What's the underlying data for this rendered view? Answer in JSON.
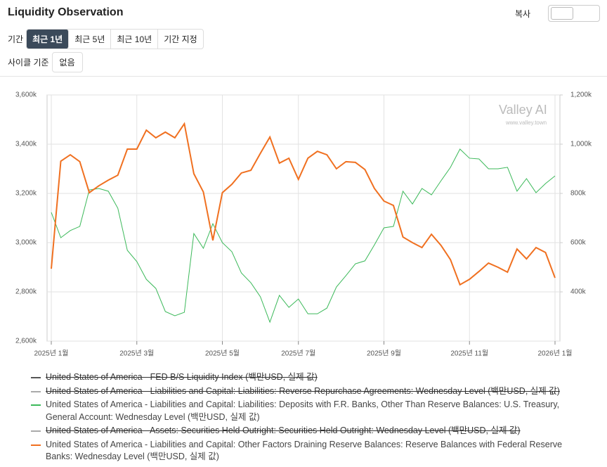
{
  "header": {
    "title": "Liquidity Observation",
    "copy": "복사"
  },
  "controls": {
    "period_label": "기간",
    "periods": [
      "최근 1년",
      "최근 5년",
      "최근 10년",
      "기간 지정"
    ],
    "cycle_label": "사이클 기준",
    "cycle_value": "없음"
  },
  "watermark": {
    "brand": "Valley AI",
    "url": "www.valley.town"
  },
  "chart_data": {
    "type": "line",
    "categories": [
      "2025년 1월",
      null,
      null,
      null,
      null,
      null,
      null,
      null,
      null,
      "2025년 3월",
      null,
      null,
      null,
      null,
      null,
      null,
      null,
      null,
      "2025년 5월",
      null,
      null,
      null,
      null,
      null,
      null,
      null,
      "2025년 7월",
      null,
      null,
      null,
      null,
      null,
      null,
      null,
      null,
      "2025년 9월",
      null,
      null,
      null,
      null,
      null,
      null,
      null,
      null,
      "2025년 11월",
      null,
      null,
      null,
      null,
      null,
      null,
      null,
      null,
      "2026년 1월"
    ],
    "ylim": [
      2600,
      3600
    ],
    "yticks": [
      {
        "value": 2600,
        "label": "2,600k"
      },
      {
        "value": 2800,
        "label": "2,800k"
      },
      {
        "value": 3000,
        "label": "3,000k"
      },
      {
        "value": 3200,
        "label": "3,200k"
      },
      {
        "value": 3400,
        "label": "3,400k"
      },
      {
        "value": 3600,
        "label": "3,600k"
      }
    ],
    "y2lim": [
      200,
      1200
    ],
    "y2ticks": [
      {
        "value": 400,
        "label": "400k"
      },
      {
        "value": 600,
        "label": "600k"
      },
      {
        "value": 800,
        "label": "800k"
      },
      {
        "value": 1000,
        "label": "1,000k"
      },
      {
        "value": 1200,
        "label": "1,200k"
      }
    ],
    "grid": true,
    "series": [
      {
        "name": "United States of America - FED B/S Liquidity Index (백만USD, 실제 값)",
        "color": "#555555",
        "visible": false
      },
      {
        "name": "United States of America - Liabilities and Capital: Liabilities: Reverse Repurchase Agreements: Wednesday Level (백만USD, 실제 값)",
        "color": "#aaaaaa",
        "visible": false
      },
      {
        "name": "United States of America - Liabilities and Capital: Liabilities: Deposits with F.R. Banks, Other Than Reserve Balances: U.S. Treasury, General Account: Wednesday Level (백만USD, 실제 값)",
        "color": "#3cb95a",
        "visible": true,
        "values": [
          3123,
          3020,
          3049,
          3066,
          3214,
          3220,
          3209,
          3140,
          2969,
          2923,
          2851,
          2814,
          2720,
          2703,
          2717,
          3037,
          2977,
          3077,
          3000,
          2963,
          2877,
          2837,
          2780,
          2677,
          2786,
          2737,
          2771,
          2711,
          2711,
          2734,
          2820,
          2866,
          2914,
          2926,
          2991,
          3060,
          3066,
          3209,
          3157,
          3220,
          3194,
          3251,
          3306,
          3380,
          3343,
          3340,
          3300,
          3300,
          3306,
          3209,
          3260,
          3203,
          3240,
          3271
        ]
      },
      {
        "name": "United States of America - Assets: Securities Held Outright: Securities Held Outright: Wednesday Level (백만USD, 실제 값)",
        "color": "#aaaaaa",
        "visible": false
      },
      {
        "name": "United States of America - Liabilities and Capital: Other Factors Draining Reserve Balances: Reserve Balances with Federal Reserve Banks: Wednesday Level (백만USD, 실제 값)",
        "color": "#f07020",
        "visible": true,
        "axis": "y2",
        "values": [
          494,
          931,
          957,
          929,
          803,
          831,
          854,
          874,
          980,
          980,
          1057,
          1026,
          1049,
          1026,
          1083,
          880,
          806,
          609,
          803,
          837,
          883,
          894,
          963,
          1029,
          923,
          943,
          857,
          943,
          971,
          957,
          900,
          929,
          926,
          897,
          820,
          769,
          751,
          623,
          600,
          580,
          634,
          589,
          531,
          429,
          451,
          483,
          517,
          500,
          480,
          574,
          534,
          580,
          560,
          457
        ]
      }
    ]
  }
}
